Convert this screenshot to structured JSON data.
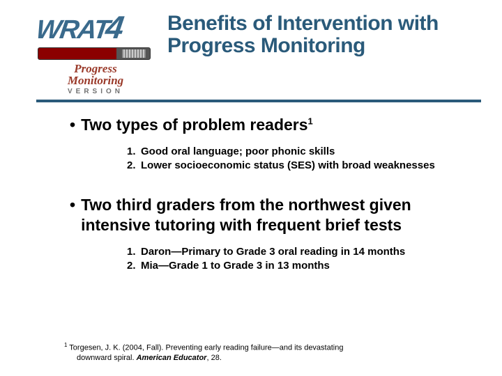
{
  "logo": {
    "brand": "WRAT",
    "num": "4",
    "line1": "Progress",
    "line2": "Monitoring",
    "version": "VERSION"
  },
  "title": "Benefits of Intervention with Progress Monitoring",
  "bullets": [
    {
      "text": "Two types of problem readers",
      "sup": "1",
      "items": [
        {
          "n": "1.",
          "text": "Good oral language; poor phonic skills"
        },
        {
          "n": "2.",
          "text": "Lower socioeconomic status (SES) with broad weaknesses"
        }
      ]
    },
    {
      "text": "Two third graders from the northwest given intensive tutoring with frequent brief tests",
      "sup": "",
      "items": [
        {
          "n": "1.",
          "text": "Daron—Primary to Grade 3 oral reading in 14 months"
        },
        {
          "n": "2.",
          "text": "Mia—Grade 1 to Grade 3 in 13 months"
        }
      ]
    }
  ],
  "footnote": {
    "sup": "1",
    "line1a": " Torgesen, J. K. (2004, Fall). Preventing early reading failure—and its devastating",
    "line2a": "downward spiral. ",
    "journal": "American Educator",
    "line2b": ", 28."
  },
  "colors": {
    "title": "#2a5a7a",
    "divider": "#2a5a7a",
    "logo_text": "#3a6a8c",
    "logo_pm": "#9a3a2a"
  }
}
